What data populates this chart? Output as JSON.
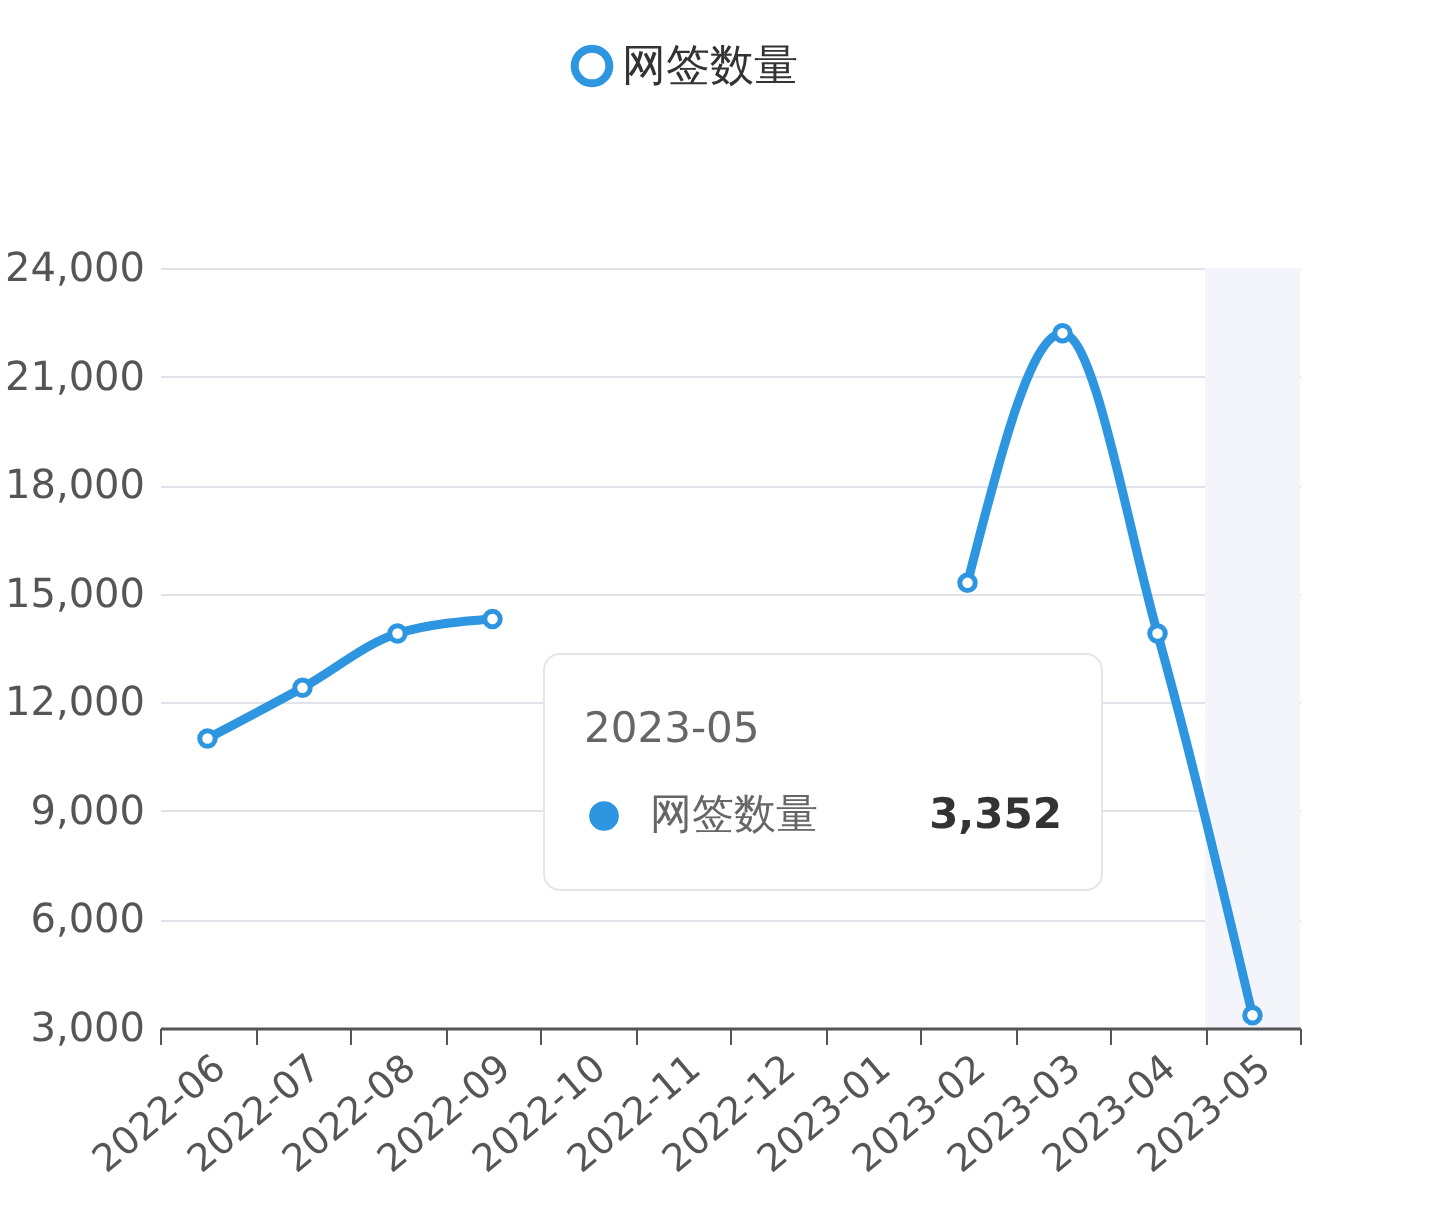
{
  "chart_data": {
    "type": "line",
    "categories": [
      "2022-06",
      "2022-07",
      "2022-08",
      "2022-09",
      "2022-10",
      "2022-11",
      "2022-12",
      "2023-01",
      "2023-02",
      "2023-03",
      "2023-04",
      "2023-05"
    ],
    "series": [
      {
        "name": "网签数量",
        "color": "#2e95e0",
        "values": [
          11000,
          12400,
          13900,
          14300,
          null,
          null,
          null,
          null,
          15300,
          22200,
          13900,
          3352
        ]
      }
    ],
    "ylim": [
      3000,
      24000
    ],
    "yticks": [
      {
        "value": 3000,
        "label": "3,000"
      },
      {
        "value": 6000,
        "label": "6,000"
      },
      {
        "value": 9000,
        "label": "9,000"
      },
      {
        "value": 12000,
        "label": "12,000"
      },
      {
        "value": 15000,
        "label": "15,000"
      },
      {
        "value": 18000,
        "label": "18,000"
      },
      {
        "value": 21000,
        "label": "21,000"
      },
      {
        "value": 24000,
        "label": "24,000"
      }
    ],
    "grid": "y",
    "legend": "top",
    "marker": "circle",
    "line_style": "solid",
    "bands": [
      {
        "axis": "x",
        "from": "2023-05",
        "to": "2023-05",
        "color": "#f3f5fa"
      }
    ],
    "annotations": [
      "2023-05",
      "网签数量",
      "3,352"
    ]
  }
}
